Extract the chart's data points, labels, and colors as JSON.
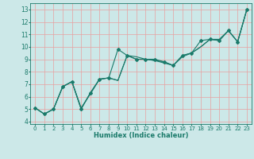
{
  "xlabel": "Humidex (Indice chaleur)",
  "bg_color": "#cce8e8",
  "grid_color": "#e8a0a0",
  "line_color": "#1a7a6a",
  "xlim": [
    -0.5,
    23.5
  ],
  "ylim": [
    3.8,
    13.5
  ],
  "xticks": [
    0,
    1,
    2,
    3,
    4,
    5,
    6,
    7,
    8,
    9,
    10,
    11,
    12,
    13,
    14,
    15,
    16,
    17,
    18,
    19,
    20,
    21,
    22,
    23
  ],
  "yticks": [
    4,
    5,
    6,
    7,
    8,
    9,
    10,
    11,
    12,
    13
  ],
  "line1_x": [
    0,
    1,
    2,
    3,
    4,
    5,
    6,
    7,
    8,
    9,
    10,
    11,
    12,
    13,
    14,
    15,
    16,
    17,
    18,
    19,
    20,
    21,
    22,
    23
  ],
  "line1_y": [
    5.1,
    4.6,
    5.0,
    6.8,
    7.2,
    5.0,
    6.3,
    7.4,
    7.5,
    9.8,
    9.3,
    9.0,
    9.0,
    9.0,
    8.8,
    8.5,
    9.3,
    9.5,
    10.5,
    10.6,
    10.5,
    11.3,
    10.4,
    13.0
  ],
  "line2_x": [
    0,
    1,
    2,
    3,
    4,
    5,
    6,
    7,
    8,
    9,
    10,
    11,
    12,
    13,
    14,
    15,
    16,
    17,
    18,
    19,
    20,
    21,
    22,
    23
  ],
  "line2_y": [
    5.1,
    4.6,
    5.0,
    6.8,
    7.2,
    5.1,
    6.2,
    7.4,
    7.5,
    7.3,
    9.3,
    9.0,
    9.0,
    8.9,
    8.7,
    8.5,
    9.2,
    9.5,
    10.0,
    10.6,
    10.5,
    11.3,
    10.4,
    13.0
  ],
  "line3_x": [
    0,
    1,
    2,
    3,
    4,
    5,
    6,
    7,
    8,
    9,
    10,
    11,
    12,
    13,
    14,
    15,
    16,
    17,
    18,
    19,
    20,
    21,
    22,
    23
  ],
  "line3_y": [
    5.1,
    4.6,
    5.0,
    6.8,
    7.2,
    5.0,
    6.3,
    7.4,
    7.5,
    7.3,
    9.3,
    9.2,
    9.0,
    8.9,
    8.8,
    8.5,
    9.3,
    9.5,
    10.0,
    10.6,
    10.6,
    11.3,
    10.4,
    13.0
  ],
  "marker_size": 2.0,
  "line_width": 0.8,
  "tick_fontsize": 5.0,
  "xlabel_fontsize": 6.0
}
